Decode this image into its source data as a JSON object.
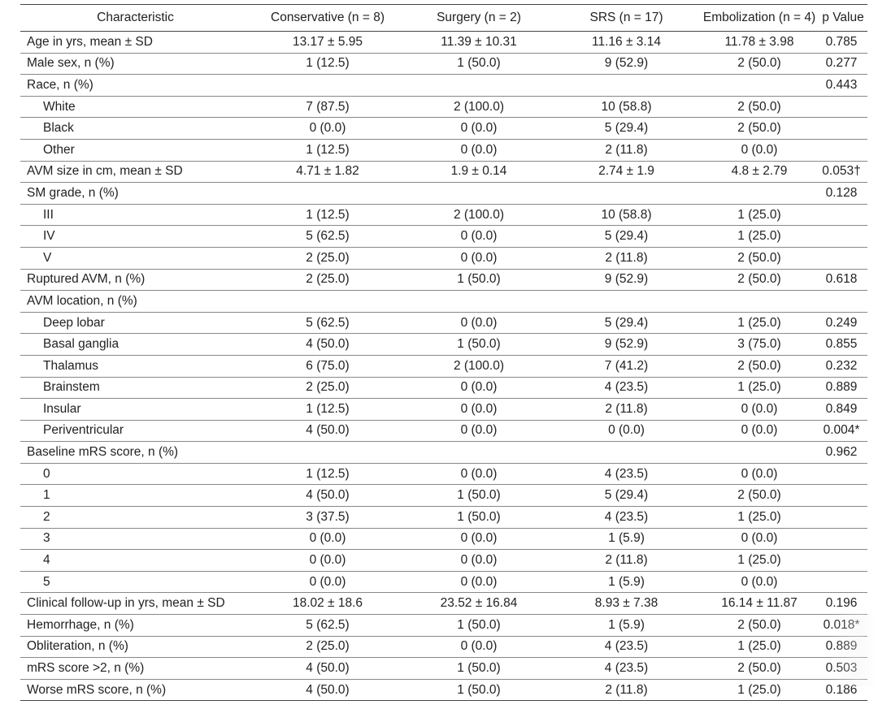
{
  "table": {
    "headers": [
      "Characteristic",
      "Conservative (n = 8)",
      "Surgery (n = 2)",
      "SRS (n = 17)",
      "Embolization (n = 4)",
      "p Value"
    ],
    "rows": [
      {
        "label": "Age in yrs, mean ± SD",
        "sub": false,
        "group_start": true,
        "values": [
          "13.17 ± 5.95",
          "11.39 ± 10.31",
          "11.16 ± 3.14",
          "11.78 ± 3.98",
          "0.785"
        ]
      },
      {
        "label": "Male sex, n (%)",
        "sub": false,
        "group_start": true,
        "values": [
          "1 (12.5)",
          "1 (50.0)",
          "9 (52.9)",
          "2 (50.0)",
          "0.277"
        ]
      },
      {
        "label": "Race, n (%)",
        "sub": false,
        "group_start": true,
        "values": [
          "",
          "",
          "",
          "",
          "0.443"
        ]
      },
      {
        "label": "White",
        "sub": true,
        "group_start": true,
        "values": [
          "7 (87.5)",
          "2 (100.0)",
          "10 (58.8)",
          "2 (50.0)",
          ""
        ]
      },
      {
        "label": "Black",
        "sub": true,
        "group_start": true,
        "values": [
          "0 (0.0)",
          "0 (0.0)",
          "5 (29.4)",
          "2 (50.0)",
          ""
        ]
      },
      {
        "label": "Other",
        "sub": true,
        "group_start": true,
        "values": [
          "1 (12.5)",
          "0 (0.0)",
          "2 (11.8)",
          "0 (0.0)",
          ""
        ]
      },
      {
        "label": "AVM size in cm, mean ± SD",
        "sub": false,
        "group_start": true,
        "values": [
          "4.71 ± 1.82",
          "1.9 ± 0.14",
          "2.74 ± 1.9",
          "4.8 ± 2.79",
          "0.053†"
        ]
      },
      {
        "label": "SM grade, n (%)",
        "sub": false,
        "group_start": true,
        "values": [
          "",
          "",
          "",
          "",
          "0.128"
        ]
      },
      {
        "label": "III",
        "sub": true,
        "group_start": true,
        "values": [
          "1 (12.5)",
          "2 (100.0)",
          "10 (58.8)",
          "1 (25.0)",
          ""
        ]
      },
      {
        "label": "IV",
        "sub": true,
        "group_start": true,
        "values": [
          "5 (62.5)",
          "0 (0.0)",
          "5 (29.4)",
          "1 (25.0)",
          ""
        ]
      },
      {
        "label": "V",
        "sub": true,
        "group_start": true,
        "values": [
          "2 (25.0)",
          "0 (0.0)",
          "2 (11.8)",
          "2 (50.0)",
          ""
        ]
      },
      {
        "label": "Ruptured AVM, n (%)",
        "sub": false,
        "group_start": true,
        "values": [
          "2 (25.0)",
          "1 (50.0)",
          "9 (52.9)",
          "2 (50.0)",
          "0.618"
        ]
      },
      {
        "label": "AVM location, n (%)",
        "sub": false,
        "group_start": true,
        "values": [
          "",
          "",
          "",
          "",
          ""
        ]
      },
      {
        "label": "Deep lobar",
        "sub": true,
        "group_start": true,
        "values": [
          "5 (62.5)",
          "0 (0.0)",
          "5 (29.4)",
          "1 (25.0)",
          "0.249"
        ]
      },
      {
        "label": "Basal ganglia",
        "sub": true,
        "group_start": true,
        "values": [
          "4 (50.0)",
          "1 (50.0)",
          "9 (52.9)",
          "3 (75.0)",
          "0.855"
        ]
      },
      {
        "label": "Thalamus",
        "sub": true,
        "group_start": true,
        "values": [
          "6 (75.0)",
          "2 (100.0)",
          "7 (41.2)",
          "2 (50.0)",
          "0.232"
        ]
      },
      {
        "label": "Brainstem",
        "sub": true,
        "group_start": true,
        "values": [
          "2 (25.0)",
          "0 (0.0)",
          "4 (23.5)",
          "1 (25.0)",
          "0.889"
        ]
      },
      {
        "label": "Insular",
        "sub": true,
        "group_start": true,
        "values": [
          "1 (12.5)",
          "0 (0.0)",
          "2 (11.8)",
          "0 (0.0)",
          "0.849"
        ]
      },
      {
        "label": "Periventricular",
        "sub": true,
        "group_start": true,
        "values": [
          "4 (50.0)",
          "0 (0.0)",
          "0 (0.0)",
          "0 (0.0)",
          "0.004*"
        ]
      },
      {
        "label": "Baseline mRS score, n (%)",
        "sub": false,
        "group_start": true,
        "values": [
          "",
          "",
          "",
          "",
          "0.962"
        ]
      },
      {
        "label": "0",
        "sub": true,
        "group_start": true,
        "values": [
          "1 (12.5)",
          "0 (0.0)",
          "4 (23.5)",
          "0 (0.0)",
          ""
        ]
      },
      {
        "label": "1",
        "sub": true,
        "group_start": true,
        "values": [
          "4 (50.0)",
          "1 (50.0)",
          "5 (29.4)",
          "2 (50.0)",
          ""
        ]
      },
      {
        "label": "2",
        "sub": true,
        "group_start": true,
        "values": [
          "3 (37.5)",
          "1 (50.0)",
          "4 (23.5)",
          "1 (25.0)",
          ""
        ]
      },
      {
        "label": "3",
        "sub": true,
        "group_start": true,
        "values": [
          "0 (0.0)",
          "0 (0.0)",
          "1 (5.9)",
          "0 (0.0)",
          ""
        ]
      },
      {
        "label": "4",
        "sub": true,
        "group_start": true,
        "values": [
          "0 (0.0)",
          "0 (0.0)",
          "2 (11.8)",
          "1 (25.0)",
          ""
        ]
      },
      {
        "label": "5",
        "sub": true,
        "group_start": true,
        "values": [
          "0 (0.0)",
          "0 (0.0)",
          "1 (5.9)",
          "0 (0.0)",
          ""
        ]
      },
      {
        "label": "Clinical follow-up in yrs, mean ± SD",
        "sub": false,
        "group_start": true,
        "values": [
          "18.02 ± 18.6",
          "23.52 ± 16.84",
          "8.93 ± 7.38",
          "16.14 ± 11.87",
          "0.196"
        ]
      },
      {
        "label": "Hemorrhage, n (%)",
        "sub": false,
        "group_start": true,
        "values": [
          "5 (62.5)",
          "1 (50.0)",
          "1 (5.9)",
          "2 (50.0)",
          "0.018*"
        ]
      },
      {
        "label": "Obliteration, n (%)",
        "sub": false,
        "group_start": true,
        "values": [
          "2 (25.0)",
          "0 (0.0)",
          "4 (23.5)",
          "1 (25.0)",
          "0.889"
        ]
      },
      {
        "label": "mRS score >2, n (%)",
        "sub": false,
        "group_start": true,
        "values": [
          "4 (50.0)",
          "1 (50.0)",
          "4 (23.5)",
          "2 (50.0)",
          "0.503"
        ]
      },
      {
        "label": "Worse mRS score, n (%)",
        "sub": false,
        "group_start": true,
        "values": [
          "4 (50.0)",
          "1 (50.0)",
          "2 (11.8)",
          "1 (25.0)",
          "0.186"
        ]
      }
    ]
  }
}
